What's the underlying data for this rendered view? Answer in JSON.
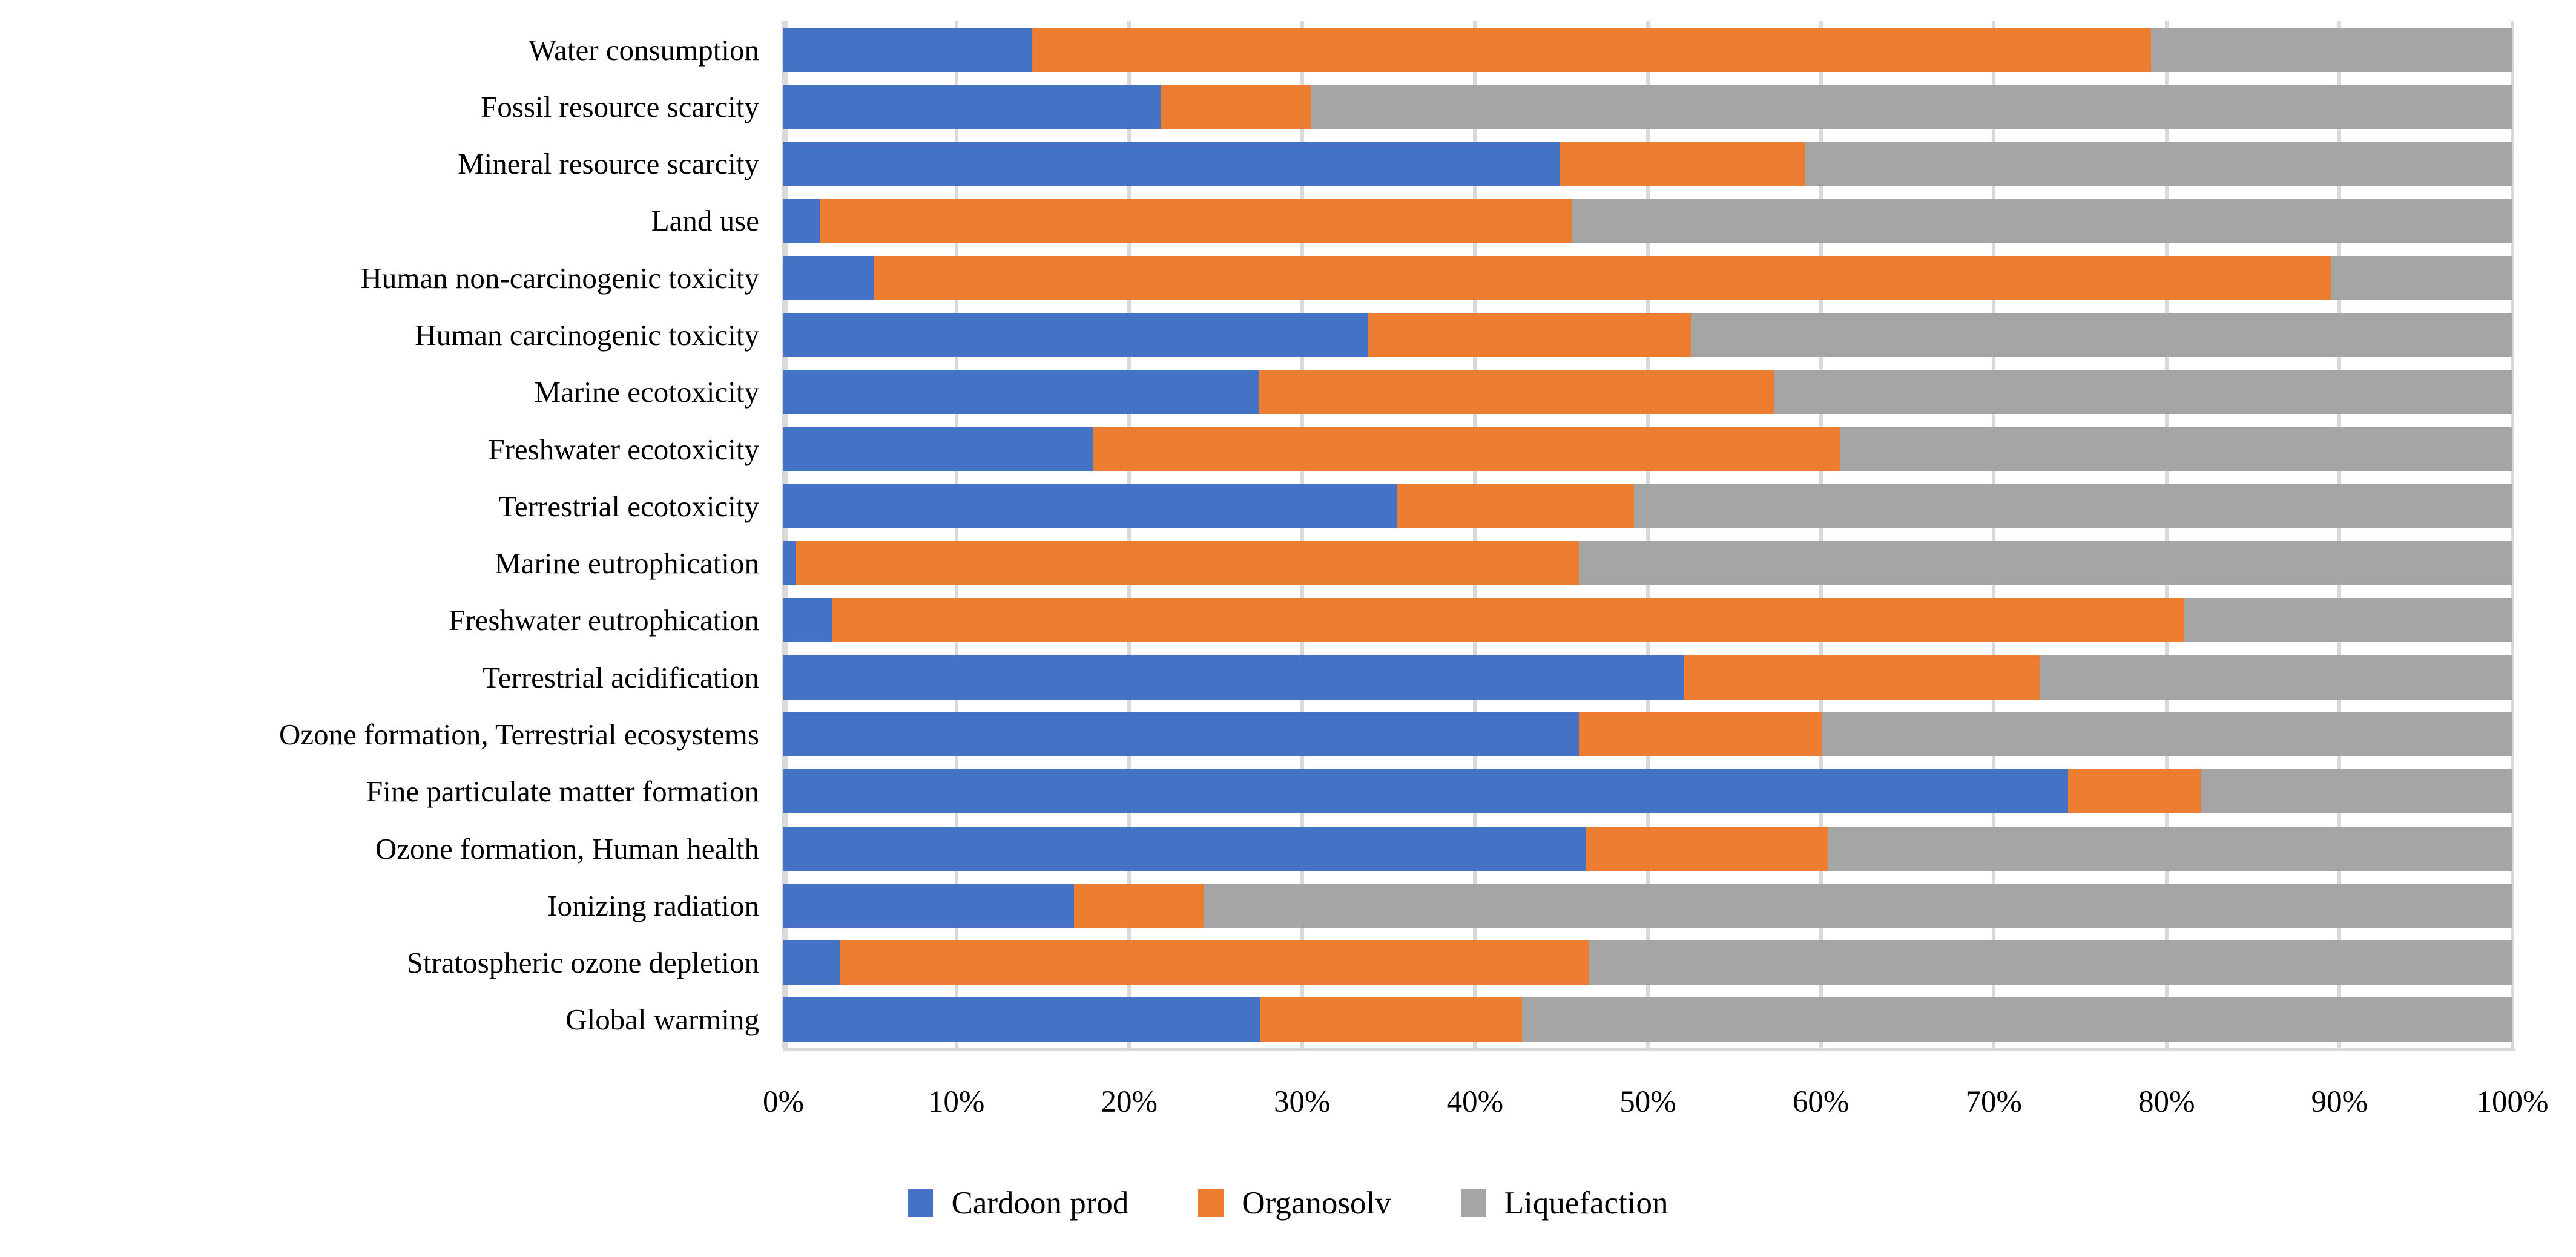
{
  "chart_data": {
    "type": "bar",
    "orientation": "horizontal-stacked",
    "title": "",
    "xlabel": "",
    "ylabel": "",
    "xlim": [
      0,
      100
    ],
    "grid": "vertical",
    "gridline_color": "#D9D9D9",
    "legend_position": "bottom",
    "x_tick_labels": [
      "0%",
      "10%",
      "20%",
      "30%",
      "40%",
      "50%",
      "60%",
      "70%",
      "80%",
      "90%",
      "100%"
    ],
    "categories": [
      "Water consumption",
      "Fossil resource scarcity",
      "Mineral resource scarcity",
      "Land use",
      "Human non-carcinogenic toxicity",
      "Human carcinogenic toxicity",
      "Marine ecotoxicity",
      "Freshwater ecotoxicity",
      "Terrestrial ecotoxicity",
      "Marine eutrophication",
      "Freshwater eutrophication",
      "Terrestrial acidification",
      "Ozone formation, Terrestrial ecosystems",
      "Fine particulate matter formation",
      "Ozone formation, Human health",
      "Ionizing radiation",
      "Stratospheric ozone depletion",
      "Global warming"
    ],
    "series": [
      {
        "name": "Cardoon prod",
        "color": "#4472C4",
        "values": [
          14.4,
          21.8,
          44.9,
          2.1,
          5.2,
          33.8,
          27.5,
          17.9,
          35.5,
          0.7,
          2.8,
          52.1,
          46.0,
          74.3,
          46.4,
          16.8,
          3.3,
          27.6
        ]
      },
      {
        "name": "Organosolv",
        "color": "#ED7D31",
        "values": [
          64.7,
          8.7,
          14.2,
          43.5,
          84.3,
          18.7,
          29.8,
          43.2,
          13.7,
          45.3,
          78.2,
          20.6,
          14.1,
          7.7,
          14.0,
          7.5,
          43.3,
          15.1
        ]
      },
      {
        "name": "Liquefaction",
        "color": "#A5A5A5",
        "values": [
          20.9,
          69.5,
          40.9,
          54.4,
          10.5,
          47.5,
          42.7,
          38.9,
          50.8,
          54.0,
          19.0,
          27.3,
          39.9,
          18.0,
          39.6,
          75.7,
          53.4,
          57.3
        ]
      }
    ]
  }
}
